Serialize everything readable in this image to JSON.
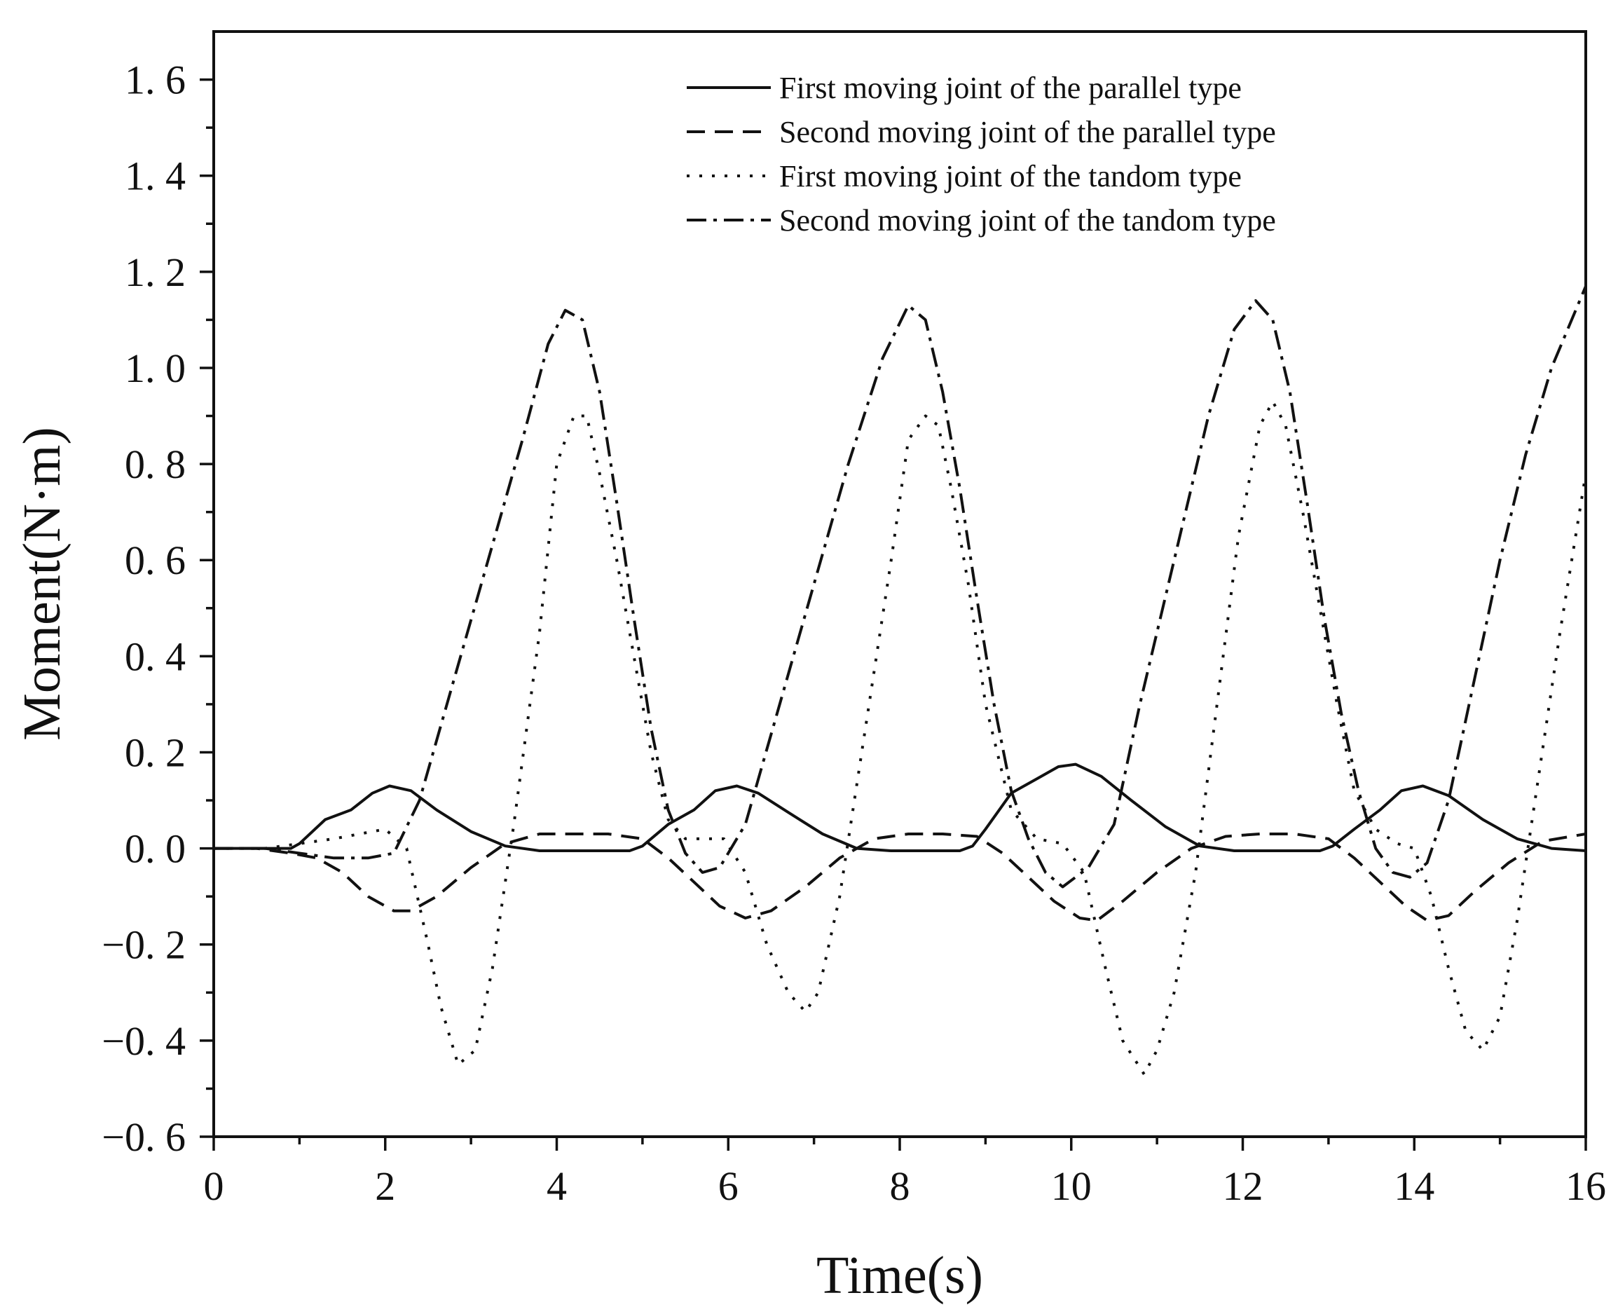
{
  "chart_data": {
    "type": "line",
    "title": "",
    "xlabel": "Time(s)",
    "ylabel": "Moment(N·m)",
    "xlim": [
      0,
      16
    ],
    "ylim": [
      -0.6,
      1.7
    ],
    "grid": false,
    "legend_position": "top-right",
    "x_ticks": [
      0,
      2,
      4,
      6,
      8,
      10,
      12,
      14,
      16
    ],
    "x_tick_labels": [
      "0",
      "2",
      "4",
      "6",
      "8",
      "10",
      "12",
      "14",
      "16"
    ],
    "y_ticks": [
      -0.6,
      -0.4,
      -0.2,
      0.0,
      0.2,
      0.4,
      0.6,
      0.8,
      1.0,
      1.2,
      1.4,
      1.6
    ],
    "y_tick_labels": [
      "−0. 6",
      "−0. 4",
      "−0. 2",
      "0. 0",
      "0. 2",
      "0. 4",
      "0. 6",
      "0. 8",
      "1. 0",
      "1. 2",
      "1. 4",
      "1. 6"
    ],
    "series": [
      {
        "name": "First moving joint of the parallel type",
        "style": "solid",
        "x": [
          0,
          0.5,
          0.9,
          1.0,
          1.3,
          1.6,
          1.85,
          2.05,
          2.3,
          2.6,
          3.0,
          3.4,
          3.8,
          4.2,
          4.6,
          4.85,
          5.0,
          5.3,
          5.6,
          5.85,
          6.1,
          6.35,
          6.7,
          7.1,
          7.5,
          7.9,
          8.3,
          8.7,
          8.85,
          9.0,
          9.3,
          9.6,
          9.85,
          10.05,
          10.35,
          10.7,
          11.1,
          11.5,
          11.9,
          12.3,
          12.7,
          12.9,
          13.05,
          13.3,
          13.6,
          13.85,
          14.1,
          14.4,
          14.8,
          15.2,
          15.6,
          16.0
        ],
        "y": [
          0,
          0,
          0.0,
          0.01,
          0.06,
          0.08,
          0.115,
          0.13,
          0.12,
          0.08,
          0.035,
          0.005,
          -0.005,
          -0.005,
          -0.005,
          -0.005,
          0.005,
          0.05,
          0.08,
          0.12,
          0.13,
          0.115,
          0.075,
          0.03,
          0.0,
          -0.005,
          -0.005,
          -0.005,
          0.005,
          0.04,
          0.115,
          0.145,
          0.17,
          0.175,
          0.15,
          0.1,
          0.045,
          0.005,
          -0.005,
          -0.005,
          -0.005,
          -0.005,
          0.005,
          0.04,
          0.08,
          0.12,
          0.13,
          0.11,
          0.06,
          0.02,
          0.0,
          -0.005
        ]
      },
      {
        "name": "Second moving joint of the parallel type",
        "style": "dashed",
        "x": [
          0,
          0.5,
          0.9,
          1.2,
          1.5,
          1.8,
          2.1,
          2.3,
          2.6,
          3.0,
          3.4,
          3.8,
          4.2,
          4.6,
          5.0,
          5.3,
          5.6,
          5.9,
          6.2,
          6.5,
          6.9,
          7.3,
          7.7,
          8.1,
          8.5,
          8.9,
          9.2,
          9.5,
          9.8,
          10.1,
          10.3,
          10.6,
          11.0,
          11.4,
          11.8,
          12.2,
          12.6,
          13.0,
          13.3,
          13.6,
          13.9,
          14.15,
          14.4,
          14.7,
          15.1,
          15.5,
          16.0
        ],
        "y": [
          0,
          0,
          -0.01,
          -0.02,
          -0.05,
          -0.1,
          -0.13,
          -0.13,
          -0.1,
          -0.04,
          0.01,
          0.03,
          0.03,
          0.03,
          0.02,
          -0.02,
          -0.07,
          -0.12,
          -0.145,
          -0.13,
          -0.08,
          -0.02,
          0.02,
          0.03,
          0.03,
          0.025,
          -0.01,
          -0.06,
          -0.11,
          -0.145,
          -0.15,
          -0.11,
          -0.05,
          0.0,
          0.025,
          0.03,
          0.03,
          0.02,
          -0.02,
          -0.07,
          -0.12,
          -0.15,
          -0.14,
          -0.09,
          -0.03,
          0.015,
          0.03
        ]
      },
      {
        "name": "First moving joint of the tandom type",
        "style": "dotted",
        "x": [
          0,
          0.6,
          1.0,
          1.4,
          1.7,
          2.0,
          2.25,
          2.5,
          2.65,
          2.85,
          3.05,
          3.25,
          3.5,
          3.8,
          4.0,
          4.2,
          4.35,
          4.5,
          4.7,
          4.9,
          5.1,
          5.3,
          5.5,
          5.75,
          5.95,
          6.2,
          6.45,
          6.7,
          6.9,
          7.05,
          7.3,
          7.6,
          7.9,
          8.1,
          8.3,
          8.45,
          8.6,
          8.8,
          9.0,
          9.3,
          9.6,
          9.9,
          10.15,
          10.4,
          10.6,
          10.85,
          11.0,
          11.2,
          11.45,
          11.7,
          11.95,
          12.2,
          12.35,
          12.5,
          12.7,
          12.9,
          13.1,
          13.3,
          13.55,
          13.8,
          14.0,
          14.2,
          14.4,
          14.6,
          14.8,
          15.0,
          15.2,
          15.45,
          15.7,
          16.0
        ],
        "y": [
          0,
          0,
          0.01,
          0.02,
          0.03,
          0.04,
          0.0,
          -0.2,
          -0.33,
          -0.45,
          -0.42,
          -0.25,
          0.05,
          0.45,
          0.8,
          0.9,
          0.9,
          0.78,
          0.6,
          0.4,
          0.2,
          0.06,
          0.02,
          0.02,
          0.02,
          -0.05,
          -0.2,
          -0.3,
          -0.34,
          -0.3,
          -0.1,
          0.25,
          0.6,
          0.85,
          0.9,
          0.88,
          0.75,
          0.55,
          0.3,
          0.08,
          0.02,
          0.01,
          -0.05,
          -0.25,
          -0.4,
          -0.47,
          -0.42,
          -0.3,
          -0.05,
          0.3,
          0.65,
          0.88,
          0.93,
          0.88,
          0.7,
          0.5,
          0.3,
          0.12,
          0.04,
          0.01,
          0.0,
          -0.1,
          -0.25,
          -0.38,
          -0.42,
          -0.35,
          -0.15,
          0.15,
          0.45,
          0.78
        ]
      },
      {
        "name": "Second moving joint of the tandom type",
        "style": "dashdot",
        "x": [
          0,
          0.6,
          1.0,
          1.4,
          1.8,
          2.1,
          2.4,
          2.8,
          3.2,
          3.6,
          3.9,
          4.1,
          4.3,
          4.5,
          4.7,
          4.9,
          5.1,
          5.3,
          5.5,
          5.7,
          5.9,
          6.2,
          6.6,
          7.0,
          7.4,
          7.8,
          8.1,
          8.3,
          8.5,
          8.7,
          8.9,
          9.1,
          9.3,
          9.5,
          9.7,
          9.9,
          10.2,
          10.5,
          10.8,
          11.2,
          11.6,
          11.9,
          12.15,
          12.35,
          12.55,
          12.75,
          12.95,
          13.15,
          13.35,
          13.55,
          13.75,
          13.95,
          14.15,
          14.4,
          14.7,
          15.0,
          15.3,
          15.6,
          16.0
        ],
        "y": [
          0,
          0,
          -0.01,
          -0.02,
          -0.02,
          -0.01,
          0.1,
          0.35,
          0.6,
          0.85,
          1.05,
          1.12,
          1.1,
          0.95,
          0.72,
          0.48,
          0.25,
          0.08,
          -0.01,
          -0.05,
          -0.04,
          0.05,
          0.3,
          0.55,
          0.8,
          1.02,
          1.13,
          1.1,
          0.95,
          0.75,
          0.52,
          0.3,
          0.12,
          0.02,
          -0.05,
          -0.08,
          -0.04,
          0.05,
          0.3,
          0.6,
          0.9,
          1.08,
          1.14,
          1.1,
          0.95,
          0.72,
          0.48,
          0.28,
          0.12,
          0.0,
          -0.05,
          -0.06,
          -0.03,
          0.1,
          0.35,
          0.6,
          0.82,
          1.0,
          1.17
        ]
      }
    ]
  }
}
